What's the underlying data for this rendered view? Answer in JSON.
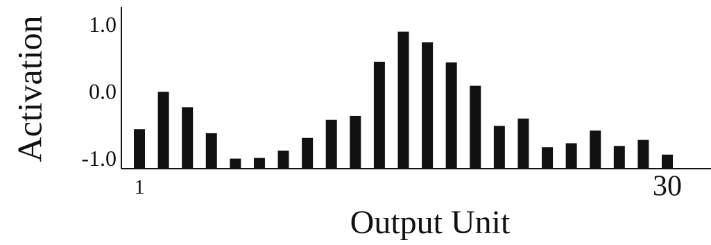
{
  "chart_data": {
    "type": "bar",
    "x_label": "Output Unit",
    "y_label": "Activation",
    "categories": [
      "1",
      null,
      null,
      null,
      null,
      null,
      null,
      null,
      null,
      null,
      null,
      null,
      null,
      null,
      null,
      null,
      null,
      null,
      null,
      null,
      null,
      null,
      "30"
    ],
    "values": [
      -0.53,
      0.03,
      -0.2,
      -0.59,
      -0.97,
      -0.96,
      -0.85,
      -0.66,
      -0.39,
      -0.33,
      0.48,
      0.93,
      0.77,
      0.47,
      0.12,
      -0.48,
      -0.37,
      -0.8,
      -0.74,
      -0.55,
      -0.78,
      -0.69,
      -0.91
    ],
    "color": "#111111",
    "ylim": [
      -1.12,
      1.3
    ],
    "yticks": [
      {
        "value": 1,
        "label": "1.0"
      },
      {
        "value": 0,
        "label": "0.0"
      },
      {
        "value": -1,
        "label": "-1.0"
      }
    ],
    "grid": false
  }
}
